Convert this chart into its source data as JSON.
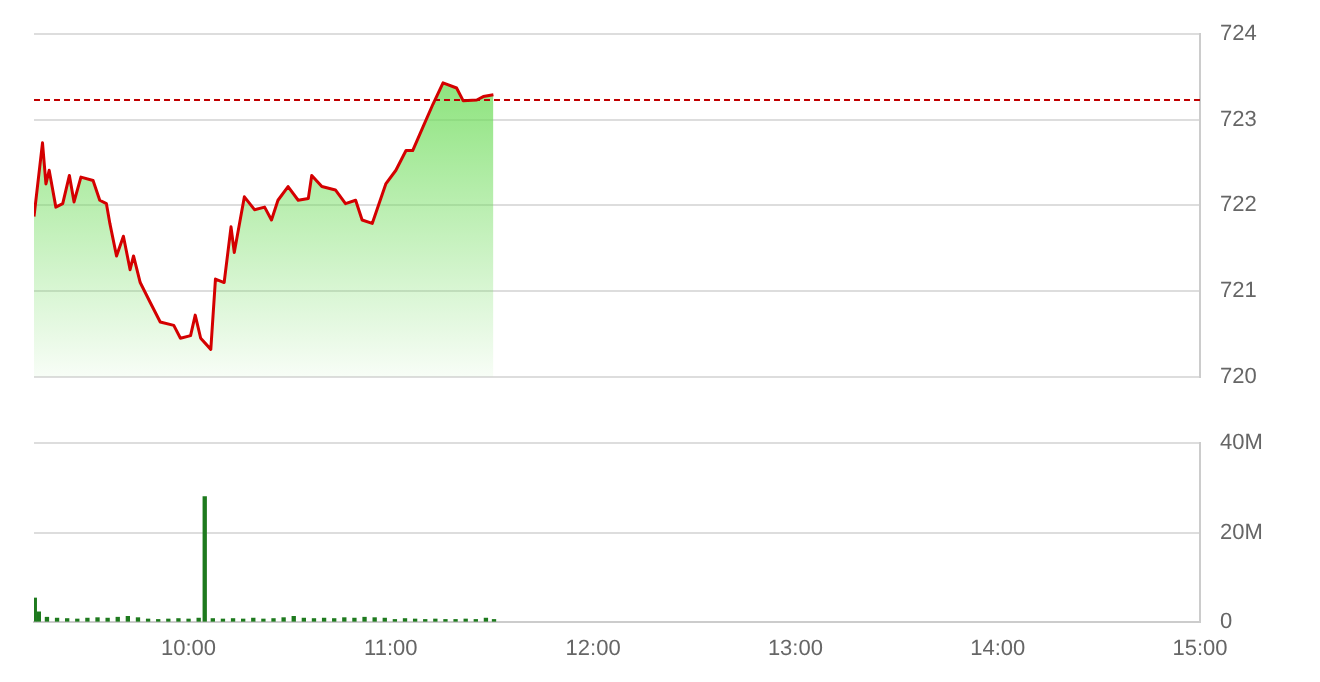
{
  "chart_data": [
    {
      "type": "area",
      "tick_labels": "y",
      "grid": "y",
      "xlim": [
        9.236,
        15
      ],
      "ylim": [
        720,
        724
      ],
      "yticks": [
        720,
        721,
        722,
        723,
        724
      ],
      "series": [
        {
          "color": "#d40000",
          "x": [
            9.236,
            9.278,
            9.295,
            9.311,
            9.344,
            9.378,
            9.411,
            9.434,
            9.468,
            9.528,
            9.561,
            9.594,
            9.611,
            9.644,
            9.678,
            9.711,
            9.728,
            9.761,
            9.81,
            9.86,
            9.927,
            9.96,
            10.01,
            10.033,
            10.06,
            10.11,
            10.133,
            10.176,
            10.21,
            10.226,
            10.276,
            10.326,
            10.376,
            10.41,
            10.442,
            10.492,
            10.542,
            10.592,
            10.609,
            10.659,
            10.726,
            10.776,
            10.826,
            10.858,
            10.908,
            10.975,
            11.025,
            11.075,
            11.108,
            11.158,
            11.208,
            11.258,
            11.325,
            11.358,
            11.425,
            11.457,
            11.507
          ],
          "values": [
            721.87,
            722.73,
            722.25,
            722.41,
            721.98,
            722.02,
            722.35,
            722.04,
            722.33,
            722.29,
            722.06,
            722.02,
            721.79,
            721.41,
            721.64,
            721.25,
            721.41,
            721.1,
            720.87,
            720.64,
            720.6,
            720.45,
            720.48,
            720.72,
            720.45,
            720.32,
            721.14,
            721.1,
            721.75,
            721.45,
            722.1,
            721.95,
            721.98,
            721.83,
            722.06,
            722.22,
            722.06,
            722.08,
            722.35,
            722.22,
            722.18,
            722.02,
            722.06,
            721.83,
            721.79,
            722.25,
            722.41,
            722.64,
            722.64,
            722.91,
            723.18,
            723.43,
            723.37,
            723.22,
            723.23,
            723.27,
            723.29
          ]
        }
      ],
      "ref_lines": [
        {
          "axis": "y",
          "value": 723.23,
          "color": "#c00000",
          "line_style": "dashed"
        }
      ]
    },
    {
      "type": "bar",
      "grid": "y",
      "xlim": [
        9.236,
        15
      ],
      "xticks": [
        {
          "value": 10,
          "label": "10:00"
        },
        {
          "value": 11,
          "label": "11:00"
        },
        {
          "value": 12,
          "label": "12:00"
        },
        {
          "value": 13,
          "label": "13:00"
        },
        {
          "value": 14,
          "label": "14:00"
        },
        {
          "value": 15,
          "label": "15:00"
        }
      ],
      "ylim": [
        0,
        40
      ],
      "yticks": [
        0,
        {
          "value": 20,
          "label": "20M"
        },
        {
          "value": 40,
          "label": "40M"
        }
      ],
      "series": [
        {
          "color": "#1e7a1e",
          "x": [
            9.24,
            9.26,
            9.3,
            9.35,
            9.4,
            9.45,
            9.5,
            9.55,
            9.6,
            9.65,
            9.7,
            9.75,
            9.8,
            9.85,
            9.9,
            9.95,
            10.0,
            10.05,
            10.08,
            10.12,
            10.17,
            10.22,
            10.27,
            10.32,
            10.37,
            10.42,
            10.47,
            10.52,
            10.57,
            10.62,
            10.67,
            10.72,
            10.77,
            10.82,
            10.87,
            10.92,
            10.97,
            11.02,
            11.07,
            11.12,
            11.17,
            11.22,
            11.27,
            11.32,
            11.37,
            11.42,
            11.47,
            11.51
          ],
          "values": [
            5.3,
            2.2,
            1,
            0.8,
            0.7,
            0.6,
            0.8,
            0.9,
            0.8,
            1,
            1.2,
            0.9,
            0.6,
            0.5,
            0.6,
            0.7,
            0.6,
            0.8,
            28,
            0.7,
            0.6,
            0.7,
            0.6,
            0.8,
            0.6,
            0.7,
            0.9,
            1.2,
            0.8,
            0.7,
            0.8,
            0.7,
            0.9,
            0.8,
            1,
            0.9,
            0.8,
            0.5,
            0.7,
            0.6,
            0.5,
            0.6,
            0.5,
            0.5,
            0.6,
            0.5,
            0.8,
            0.5
          ]
        }
      ]
    }
  ]
}
